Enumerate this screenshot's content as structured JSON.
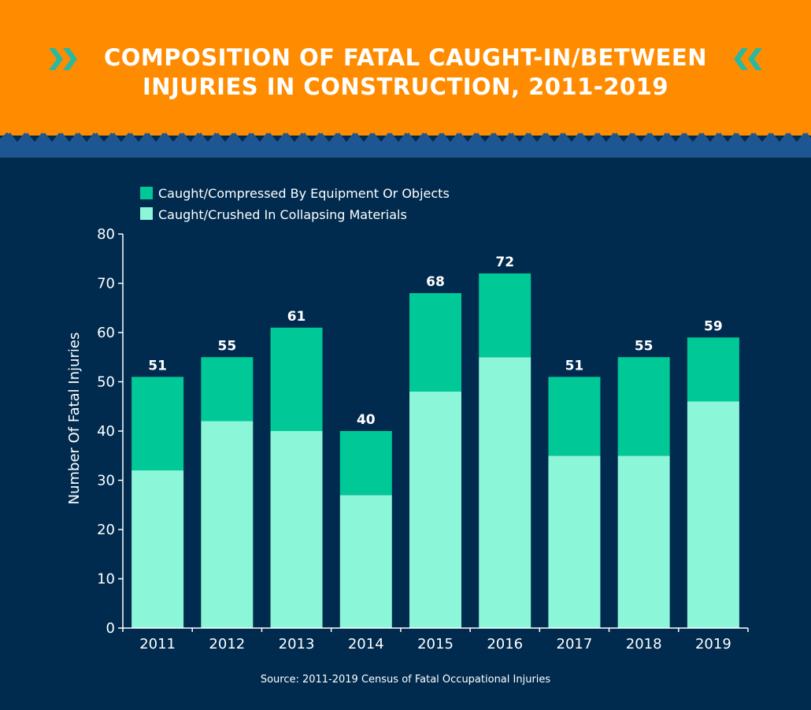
{
  "header": {
    "title_line1": "COMPOSITION OF FATAL CAUGHT-IN/BETWEEN",
    "title_line2": "INJURIES IN CONSTRUCTION, 2011-2019",
    "chevron_left_icon": "double-chevron-right-icon",
    "chevron_right_icon": "double-chevron-left-icon"
  },
  "colors": {
    "header_bg": "#ff8c00",
    "page_bg": "#002b4e",
    "zigzag": "#1d5690",
    "chevron": "#2bb8a0",
    "series_equipment": "#00c896",
    "series_collapsing": "#8cf7d8",
    "text": "#ffffff"
  },
  "chart_data": {
    "type": "bar",
    "stacked": true,
    "categories": [
      "2011",
      "2012",
      "2013",
      "2014",
      "2015",
      "2016",
      "2017",
      "2018",
      "2019"
    ],
    "series": [
      {
        "name": "Caught/Crushed In Collapsing Materials",
        "values": [
          32,
          42,
          40,
          27,
          48,
          55,
          35,
          35,
          46
        ]
      },
      {
        "name": "Caught/Compressed By Equipment Or Objects",
        "values": [
          19,
          13,
          21,
          13,
          20,
          17,
          16,
          20,
          13
        ]
      }
    ],
    "totals": [
      51,
      55,
      61,
      40,
      68,
      72,
      51,
      55,
      59
    ],
    "ylabel": "Number Of Fatal Injuries",
    "xlabel": "",
    "ylim": [
      0,
      80
    ],
    "yticks": [
      0,
      10,
      20,
      30,
      40,
      50,
      60,
      70,
      80
    ],
    "legend_order": [
      "Caught/Compressed By Equipment Or Objects",
      "Caught/Crushed In Collapsing Materials"
    ],
    "legend_position": "top-left",
    "grid": false
  },
  "source": "Source: 2011-2019 Census of Fatal Occupational Injuries"
}
